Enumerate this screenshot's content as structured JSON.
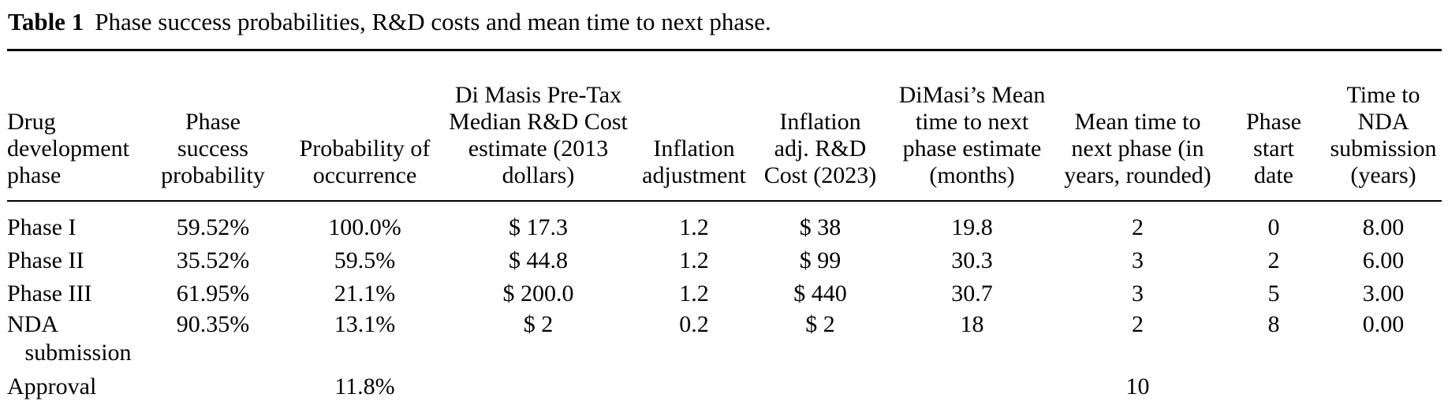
{
  "title": {
    "label": "Table 1",
    "text": "Phase success probabilities, R&D costs and mean time to next phase."
  },
  "colors": {
    "text": "#000000",
    "rule": "#000000",
    "background": "#ffffff"
  },
  "table": {
    "columns": [
      {
        "id": "drug_development_phase",
        "header": "Drug\ndevelopment\nphase",
        "align": "left"
      },
      {
        "id": "phase_success_probability",
        "header": "Phase\nsuccess\nprobability",
        "align": "center"
      },
      {
        "id": "probability_of_occurrence",
        "header": "Probability of\noccurrence",
        "align": "center"
      },
      {
        "id": "dimasi_pretax_median_rd_cost",
        "header": "Di Masis Pre-Tax\nMedian R&D Cost\nestimate (2013\ndollars)",
        "align": "center"
      },
      {
        "id": "inflation_adjustment",
        "header": "Inflation\nadjustment",
        "align": "center"
      },
      {
        "id": "inflation_adj_rd_cost_2023",
        "header": "Inflation\nadj. R&D\nCost (2023)",
        "align": "center"
      },
      {
        "id": "dimasi_mean_time_months",
        "header": "DiMasi’s Mean\ntime to next\nphase estimate\n(months)",
        "align": "center"
      },
      {
        "id": "mean_time_years_rounded",
        "header": "Mean time to\nnext phase (in\nyears, rounded)",
        "align": "center"
      },
      {
        "id": "phase_start_date",
        "header": "Phase\nstart\ndate",
        "align": "center"
      },
      {
        "id": "time_to_nda_submission_years",
        "header": "Time to\nNDA\nsubmission\n(years)",
        "align": "center"
      }
    ],
    "rows": [
      {
        "id": "phase_i",
        "cells": [
          "Phase I",
          "59.52%",
          "100.0%",
          "$ 17.3",
          "1.2",
          "$ 38",
          "19.8",
          "2",
          "0",
          "8.00"
        ]
      },
      {
        "id": "phase_ii",
        "cells": [
          "Phase II",
          "35.52%",
          "59.5%",
          "$ 44.8",
          "1.2",
          "$ 99",
          "30.3",
          "3",
          "2",
          "6.00"
        ]
      },
      {
        "id": "phase_iii",
        "cells": [
          "Phase III",
          "61.95%",
          "21.1%",
          "$ 200.0",
          "1.2",
          "$ 440",
          "30.7",
          "3",
          "5",
          "3.00"
        ]
      },
      {
        "id": "nda_submission",
        "cells": [
          "NDA\n   submission",
          "90.35%",
          "13.1%",
          "$ 2",
          "0.2",
          "$ 2",
          "18",
          "2",
          "8",
          "0.00"
        ]
      },
      {
        "id": "approval",
        "cells": [
          "Approval",
          "",
          "11.8%",
          "",
          "",
          "",
          "",
          "10",
          "",
          ""
        ]
      }
    ]
  }
}
